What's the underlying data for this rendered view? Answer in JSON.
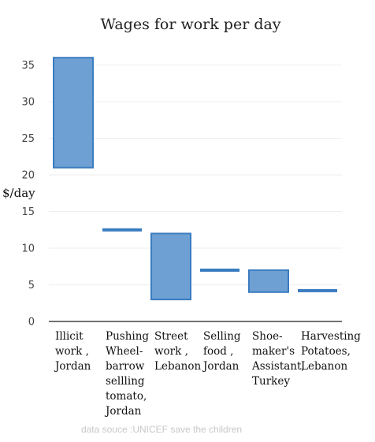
{
  "chart_data": {
    "type": "bar",
    "subtype": "floating-range",
    "title": "Wages for work per day",
    "xlabel": "",
    "ylabel": "$/day",
    "ylim": [
      0,
      37
    ],
    "yticks": [
      0,
      5,
      10,
      15,
      20,
      25,
      30,
      35
    ],
    "grid": true,
    "legend": "none",
    "bar_color": "#6fa0d3",
    "bar_edge_color": "#3a7cc0",
    "categories": [
      [
        "Illicit",
        "work ,",
        "Jordan"
      ],
      [
        "Pushing",
        "Wheel-",
        "barrow",
        "sellling",
        "tomato,",
        "Jordan"
      ],
      [
        "Street",
        "work ,",
        "Lebanon"
      ],
      [
        "Selling",
        "food ,",
        "Jordan"
      ],
      [
        "Shoe-",
        "maker's",
        "Assistant,",
        "Turkey"
      ],
      [
        "Harvesting",
        "Potatoes,",
        "Lebanon"
      ]
    ],
    "ranges": [
      {
        "low": 21,
        "high": 36
      },
      {
        "low": 12.5,
        "high": 12.5
      },
      {
        "low": 3,
        "high": 12
      },
      {
        "low": 7,
        "high": 7
      },
      {
        "low": 4,
        "high": 7
      },
      {
        "low": 4.2,
        "high": 4.2
      }
    ]
  },
  "source_note": "data souce :UNICEF  save the children"
}
